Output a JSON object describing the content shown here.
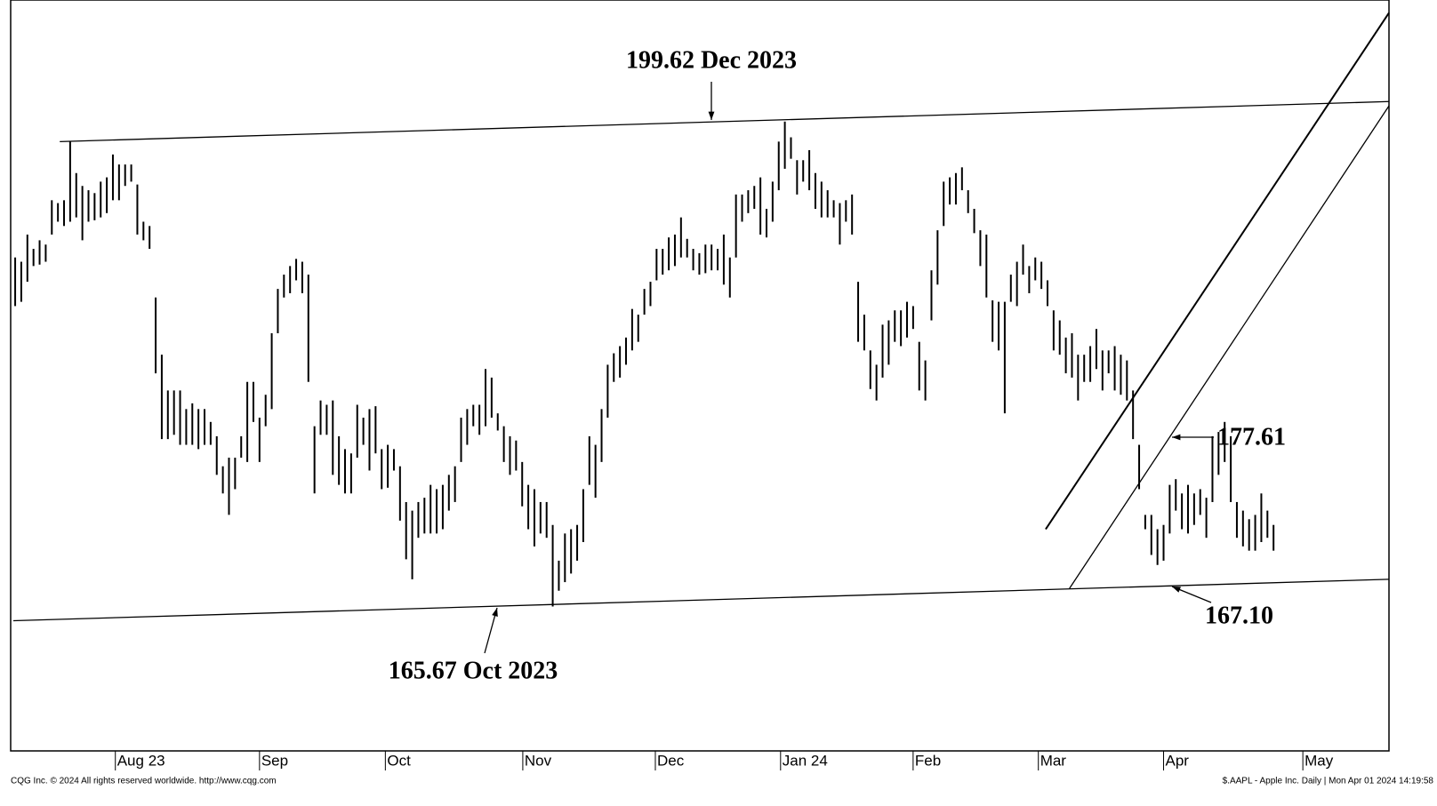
{
  "chart_data": {
    "type": "range-bar",
    "color": "#000000",
    "xlim": [
      -0.3,
      224.9
    ],
    "ylim": [
      155.6,
      208.1
    ],
    "xticks": [
      {
        "value": 16.4,
        "label": "Aug 23"
      },
      {
        "value": 40.0,
        "label": "Sep"
      },
      {
        "value": 60.6,
        "label": "Oct"
      },
      {
        "value": 83.1,
        "label": "Nov"
      },
      {
        "value": 104.8,
        "label": "Dec"
      },
      {
        "value": 125.3,
        "label": "Jan 24"
      },
      {
        "value": 147.0,
        "label": "Feb"
      },
      {
        "value": 167.5,
        "label": "Mar"
      },
      {
        "value": 188.0,
        "label": "Apr"
      },
      {
        "value": 210.8,
        "label": "May"
      }
    ],
    "high": [
      190.1,
      189.8,
      191.7,
      190.7,
      191.3,
      191.0,
      194.1,
      193.9,
      194.1,
      198.2,
      196.0,
      195.1,
      194.8,
      194.6,
      195.4,
      195.7,
      197.3,
      196.6,
      196.6,
      196.6,
      195.2,
      192.6,
      192.3,
      187.3,
      183.3,
      180.8,
      180.8,
      180.8,
      179.5,
      179.9,
      179.5,
      179.5,
      178.6,
      177.6,
      175.5,
      176.1,
      176.1,
      177.6,
      181.4,
      181.4,
      178.9,
      180.5,
      184.8,
      187.9,
      188.9,
      189.5,
      190.0,
      189.8,
      188.9,
      178.3,
      180.1,
      179.8,
      180.1,
      177.6,
      176.7,
      176.4,
      179.8,
      178.9,
      179.5,
      179.7,
      176.7,
      177.0,
      176.7,
      175.5,
      173.0,
      172.4,
      173.0,
      173.3,
      174.2,
      173.9,
      174.2,
      174.9,
      175.5,
      178.9,
      179.5,
      179.8,
      179.8,
      182.3,
      181.7,
      179.2,
      178.3,
      177.6,
      177.3,
      175.8,
      174.2,
      173.9,
      173.0,
      173.0,
      171.4,
      168.9,
      170.8,
      171.1,
      171.4,
      173.9,
      177.6,
      177.0,
      179.5,
      182.6,
      183.4,
      183.9,
      184.5,
      186.5,
      186.1,
      187.9,
      188.4,
      190.7,
      190.7,
      191.5,
      191.7,
      192.9,
      191.4,
      190.7,
      190.4,
      191.0,
      191.0,
      190.7,
      191.7,
      190.1,
      194.5,
      194.5,
      194.8,
      195.1,
      195.7,
      193.5,
      195.4,
      198.2,
      199.6,
      198.5,
      196.9,
      196.9,
      197.6,
      196.0,
      195.4,
      194.8,
      194.1,
      193.9,
      194.1,
      194.5,
      188.4,
      186.1,
      183.6,
      182.6,
      185.4,
      185.7,
      186.4,
      186.4,
      187.0,
      186.7,
      184.2,
      182.9,
      189.2,
      192.0,
      195.4,
      195.7,
      196.0,
      196.4,
      194.8,
      193.5,
      192.0,
      191.7,
      187.1,
      187.0,
      187.0,
      188.9,
      189.8,
      191.0,
      189.5,
      190.1,
      189.8,
      188.5,
      186.4,
      185.7,
      184.5,
      184.8,
      183.3,
      183.3,
      183.9,
      185.1,
      183.6,
      183.6,
      183.9,
      183.3,
      182.9,
      180.8,
      177.0,
      172.1,
      172.1,
      171.1,
      171.4,
      174.2,
      174.6,
      173.6,
      174.2,
      173.6,
      173.9,
      173.3,
      177.6,
      177.9,
      178.6,
      177.6,
      173.0,
      172.4,
      171.8,
      172.1,
      173.6,
      172.4,
      171.4
    ],
    "low": [
      186.7,
      187.0,
      188.4,
      189.5,
      189.6,
      189.8,
      191.7,
      192.6,
      192.3,
      192.6,
      192.9,
      191.3,
      192.6,
      192.7,
      192.9,
      193.2,
      194.1,
      194.1,
      195.1,
      195.4,
      191.7,
      191.3,
      190.7,
      182.0,
      177.4,
      177.4,
      177.7,
      177.0,
      177.0,
      177.0,
      176.7,
      177.0,
      177.0,
      174.9,
      173.6,
      172.1,
      173.9,
      176.1,
      175.8,
      178.6,
      175.8,
      178.3,
      179.5,
      184.8,
      187.3,
      187.6,
      188.5,
      187.6,
      181.4,
      173.6,
      177.7,
      177.7,
      174.9,
      174.2,
      173.6,
      173.6,
      176.1,
      177.0,
      175.2,
      176.4,
      173.9,
      174.0,
      175.2,
      171.7,
      169.0,
      167.6,
      170.5,
      170.8,
      170.8,
      170.8,
      171.1,
      172.4,
      173.0,
      175.8,
      177.0,
      178.3,
      177.7,
      178.3,
      178.9,
      178.0,
      175.8,
      174.9,
      175.2,
      172.7,
      171.1,
      169.9,
      170.8,
      170.5,
      165.7,
      166.8,
      167.4,
      168.0,
      168.9,
      170.2,
      174.2,
      173.3,
      175.8,
      178.9,
      181.4,
      181.7,
      182.6,
      183.6,
      184.2,
      186.1,
      186.7,
      188.5,
      188.9,
      189.2,
      189.5,
      190.1,
      190.1,
      189.2,
      188.9,
      189.0,
      189.2,
      189.2,
      188.2,
      187.3,
      190.1,
      192.6,
      193.2,
      193.5,
      191.7,
      191.5,
      192.6,
      194.8,
      196.3,
      197.0,
      194.5,
      195.4,
      194.8,
      193.5,
      192.9,
      192.9,
      192.9,
      191.0,
      192.6,
      191.7,
      184.2,
      183.6,
      180.9,
      180.1,
      181.7,
      182.6,
      184.2,
      183.9,
      184.5,
      185.1,
      180.8,
      180.1,
      185.7,
      188.2,
      192.3,
      193.8,
      193.8,
      194.8,
      193.2,
      191.8,
      189.5,
      187.3,
      184.2,
      183.6,
      179.2,
      187.0,
      186.7,
      188.9,
      187.6,
      188.5,
      187.9,
      186.7,
      183.6,
      183.3,
      182.0,
      181.7,
      180.1,
      181.4,
      181.4,
      182.3,
      180.8,
      182.0,
      180.8,
      180.5,
      180.1,
      177.4,
      173.9,
      171.1,
      169.3,
      168.6,
      168.9,
      170.8,
      172.4,
      171.1,
      170.8,
      171.4,
      172.1,
      170.5,
      173.0,
      174.9,
      175.8,
      173.0,
      170.5,
      169.9,
      169.6,
      169.6,
      170.2,
      170.5,
      169.6
    ],
    "trendlines": [
      {
        "x": [
          7.3,
          224.9
        ],
        "y": [
          198.2,
          201.0
        ]
      },
      {
        "x": [
          -0.3,
          224.9
        ],
        "y": [
          164.7,
          167.6
        ]
      },
      {
        "x": [
          168.7,
          224.9
        ],
        "y": [
          171.1,
          207.2
        ]
      },
      {
        "x": [
          172.6,
          224.9
        ],
        "y": [
          166.96,
          200.7
        ]
      }
    ],
    "annotations": [
      "199.62 Dec 2023",
      "165.67 Oct 2023",
      "177.61",
      "167.10"
    ],
    "footer_left": "CQG Inc. © 2024 All rights reserved worldwide. http://www.cqg.com",
    "footer_right": "$.AAPL - Apple Inc. Daily | Mon Apr 01 2024 14:19:58"
  }
}
